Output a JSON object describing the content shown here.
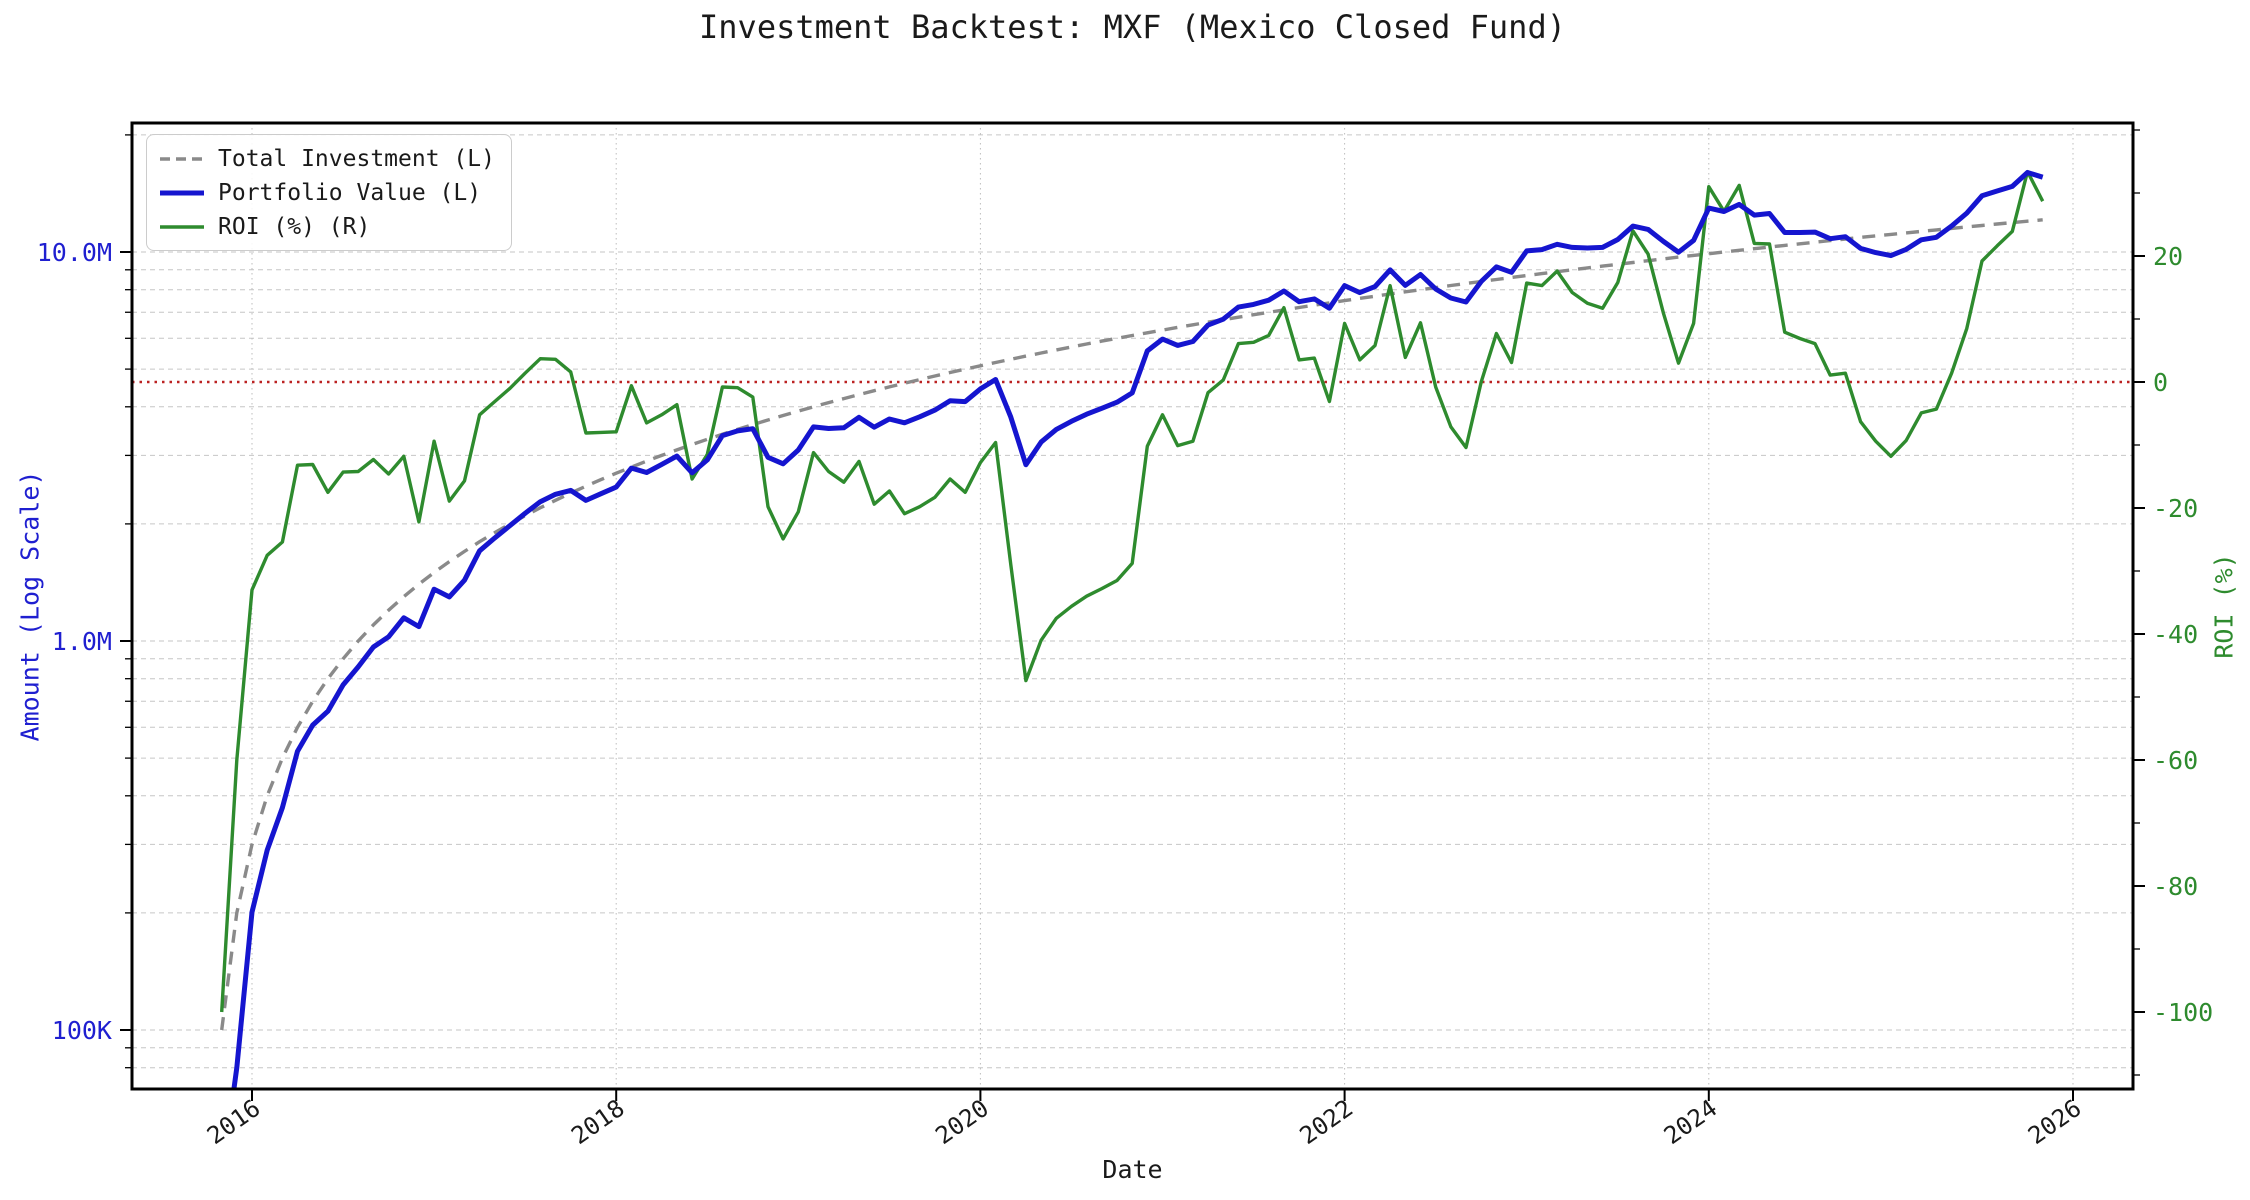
{
  "title": "Investment Backtest: MXF (Mexico Closed Fund)",
  "legend": {
    "position": "upper-left",
    "items": [
      {
        "label": "Total Investment (L)",
        "color": "#8a8a8a",
        "dash": "dashed"
      },
      {
        "label": "Portfolio Value (L)",
        "color": "#1515cf",
        "dash": "solid"
      },
      {
        "label": "ROI (%) (R)",
        "color": "#2e8b2e",
        "dash": "solid"
      }
    ]
  },
  "axes": {
    "x": {
      "label": "Date",
      "tick_labels": [
        "2016",
        "2018",
        "2020",
        "2022",
        "2024",
        "2026"
      ],
      "tick_values": [
        2016,
        2018,
        2020,
        2022,
        2024,
        2026
      ]
    },
    "left": {
      "label": "Amount (Log Scale)",
      "scale": "log",
      "color": "#1f1fd0",
      "tick_labels": [
        "10.0M",
        "1.0M",
        "100K"
      ],
      "tick_values_millions": [
        10,
        1,
        0.1
      ]
    },
    "right": {
      "label": "ROI (%)",
      "scale": "linear",
      "color": "#2e8b2e",
      "tick_labels": [
        "20",
        "0",
        "-20",
        "-40",
        "-60",
        "-80",
        "-100"
      ],
      "tick_values": [
        20,
        0,
        -20,
        -40,
        -60,
        -80,
        -100
      ]
    }
  },
  "colors": {
    "total_investment": "#8a8a8a",
    "portfolio_value": "#1515cf",
    "roi": "#2e8b2e",
    "zero_line": "#bb2222",
    "grid": "#c6c6c6",
    "spine": "#000000"
  },
  "chart_data": {
    "type": "line",
    "title": "Investment Backtest: MXF (Mexico Closed Fund)",
    "xlabel": "Date",
    "x_start_month": "2015-11",
    "x_end_month": "2025-11",
    "frequency": "monthly",
    "n_points": 121,
    "x_tick_labels": [
      "2016",
      "2018",
      "2020",
      "2022",
      "2024",
      "2026"
    ],
    "left_axis_range_millions": [
      0.07,
      22
    ],
    "right_axis_range_percent": [
      -112,
      41
    ],
    "zero_roi_line": {
      "value": 0,
      "color": "#bb2222",
      "style": "dotted"
    },
    "grid": true,
    "legend_position": "upper-left",
    "series": [
      {
        "name": "Total Investment (L)",
        "axis": "left",
        "unit": "millions",
        "style": "dashed",
        "color": "#8a8a8a",
        "values": [
          0.1,
          0.2,
          0.3,
          0.4,
          0.5,
          0.6,
          0.7,
          0.8,
          0.9,
          1.0,
          1.1,
          1.2,
          1.3,
          1.4,
          1.5,
          1.6,
          1.7,
          1.8,
          1.9,
          2.0,
          2.1,
          2.2,
          2.3,
          2.4,
          2.5,
          2.6,
          2.7,
          2.8,
          2.9,
          3.0,
          3.1,
          3.2,
          3.3,
          3.4,
          3.5,
          3.6,
          3.7,
          3.8,
          3.9,
          4.0,
          4.1,
          4.2,
          4.3,
          4.4,
          4.5,
          4.6,
          4.7,
          4.8,
          4.9,
          5.0,
          5.1,
          5.2,
          5.3,
          5.4,
          5.5,
          5.6,
          5.7,
          5.8,
          5.9,
          6.0,
          6.1,
          6.2,
          6.3,
          6.4,
          6.5,
          6.6,
          6.7,
          6.8,
          6.9,
          7.0,
          7.1,
          7.2,
          7.3,
          7.4,
          7.5,
          7.6,
          7.7,
          7.8,
          7.9,
          8.0,
          8.1,
          8.2,
          8.3,
          8.4,
          8.5,
          8.6,
          8.7,
          8.8,
          8.9,
          9.0,
          9.1,
          9.2,
          9.3,
          9.4,
          9.5,
          9.6,
          9.7,
          9.8,
          9.9,
          10.0,
          10.1,
          10.2,
          10.3,
          10.4,
          10.5,
          10.6,
          10.7,
          10.8,
          10.9,
          11.0,
          11.1,
          11.2,
          11.3,
          11.4,
          11.5,
          11.6,
          11.7,
          11.8,
          11.9,
          12.0,
          12.1
        ]
      },
      {
        "name": "Portfolio Value (L)",
        "axis": "left",
        "unit": "millions",
        "style": "solid",
        "color": "#1515cf",
        "values": [
          0.0,
          0.08,
          0.201,
          0.29,
          0.373,
          0.521,
          0.608,
          0.66,
          0.771,
          0.858,
          0.965,
          1.025,
          1.147,
          1.089,
          1.359,
          1.298,
          1.433,
          1.706,
          1.841,
          1.98,
          2.129,
          2.281,
          2.383,
          2.438,
          2.298,
          2.392,
          2.487,
          2.783,
          2.712,
          2.844,
          2.988,
          2.707,
          2.921,
          3.373,
          3.469,
          3.514,
          2.967,
          2.854,
          3.097,
          3.552,
          3.518,
          3.532,
          3.758,
          3.546,
          3.722,
          3.639,
          3.769,
          3.922,
          4.145,
          4.125,
          4.447,
          4.701,
          3.763,
          2.84,
          3.245,
          3.5,
          3.671,
          3.828,
          3.965,
          4.11,
          4.343,
          5.568,
          5.972,
          5.754,
          5.889,
          6.488,
          6.72,
          7.215,
          7.335,
          7.518,
          7.938,
          7.452,
          7.577,
          7.171,
          8.198,
          7.866,
          8.147,
          8.993,
          8.208,
          8.752,
          8.035,
          7.618,
          7.437,
          8.4,
          9.155,
          8.867,
          10.066,
          10.146,
          10.466,
          10.278,
          10.238,
          10.276,
          10.769,
          11.656,
          11.429,
          10.656,
          9.991,
          10.711,
          12.969,
          12.71,
          13.251,
          12.444,
          12.556,
          11.222,
          11.225,
          11.247,
          10.818,
          10.951,
          10.213,
          9.966,
          9.79,
          10.158,
          10.746,
          10.91,
          11.661,
          12.586,
          13.946,
          14.349,
          14.744,
          16.008,
          15.573
        ]
      },
      {
        "name": "ROI (%) (R)",
        "axis": "right",
        "unit": "percent",
        "style": "solid",
        "color": "#2e8b2e",
        "values": [
          -100,
          -60,
          -33,
          -27.5,
          -25.4,
          -13.2,
          -13.1,
          -17.5,
          -14.3,
          -14.2,
          -12.3,
          -14.6,
          -11.8,
          -22.2,
          -9.4,
          -18.9,
          -15.7,
          -5.2,
          -3.1,
          -1.0,
          1.4,
          3.7,
          3.6,
          1.6,
          -8.1,
          -8.0,
          -7.9,
          -0.6,
          -6.5,
          -5.2,
          -3.6,
          -15.4,
          -11.5,
          -0.8,
          -0.9,
          -2.4,
          -19.8,
          -24.9,
          -20.6,
          -11.2,
          -14.2,
          -15.9,
          -12.6,
          -19.4,
          -17.3,
          -20.9,
          -19.8,
          -18.3,
          -15.4,
          -17.5,
          -12.8,
          -9.6,
          -29.0,
          -47.4,
          -41.0,
          -37.5,
          -35.6,
          -34.0,
          -32.8,
          -31.5,
          -28.8,
          -10.2,
          -5.2,
          -10.1,
          -9.4,
          -1.7,
          0.3,
          6.1,
          6.3,
          7.4,
          11.8,
          3.5,
          3.8,
          -3.1,
          9.3,
          3.5,
          5.8,
          15.3,
          3.9,
          9.4,
          -0.8,
          -7.1,
          -10.4,
          0.0,
          7.7,
          3.1,
          15.7,
          15.3,
          17.6,
          14.2,
          12.5,
          11.7,
          15.8,
          24.0,
          20.3,
          11.0,
          3.0,
          9.3,
          31.0,
          27.1,
          31.2,
          22.0,
          21.9,
          7.9,
          6.9,
          6.1,
          1.1,
          1.4,
          -6.3,
          -9.4,
          -11.8,
          -9.3,
          -4.9,
          -4.3,
          1.4,
          8.5,
          19.2,
          21.6,
          23.9,
          33.4,
          28.7
        ]
      }
    ]
  }
}
